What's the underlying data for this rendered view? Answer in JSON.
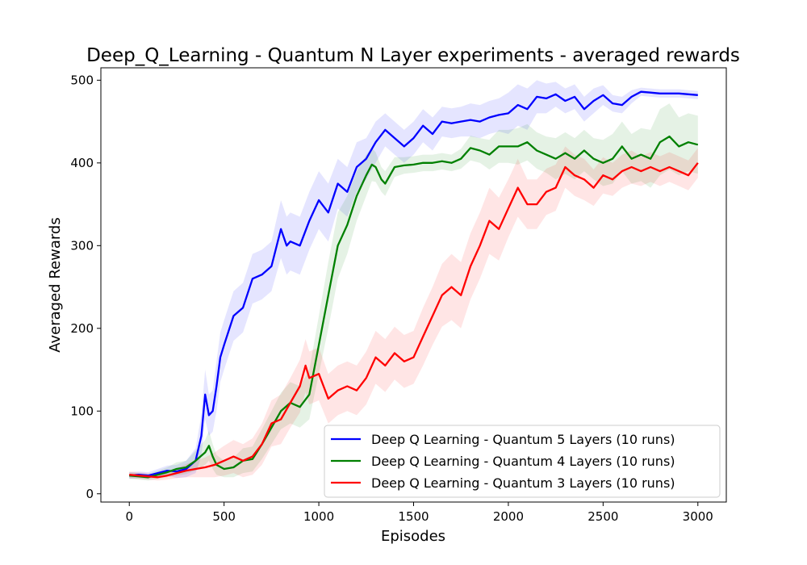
{
  "chart_data": {
    "type": "line",
    "title": "Deep_Q_Learning - Quantum N Layer experiments - averaged rewards",
    "xlabel": "Episodes",
    "ylabel": "Averaged Rewards",
    "xlim": [
      -150,
      3150
    ],
    "ylim": [
      -10,
      515
    ],
    "xticks": [
      0,
      500,
      1000,
      1500,
      2000,
      2500,
      3000
    ],
    "yticks": [
      0,
      100,
      200,
      300,
      400,
      500
    ],
    "grid": false,
    "legend_position": "bottom-right",
    "series": [
      {
        "name": "Deep Q Learning - Quantum 5 Layers (10 runs)",
        "color": "#0000ff",
        "x": [
          0,
          50,
          100,
          150,
          200,
          250,
          300,
          350,
          380,
          400,
          420,
          440,
          460,
          480,
          500,
          550,
          600,
          650,
          700,
          750,
          800,
          830,
          850,
          900,
          950,
          1000,
          1050,
          1100,
          1150,
          1200,
          1250,
          1300,
          1350,
          1400,
          1450,
          1500,
          1550,
          1600,
          1650,
          1700,
          1750,
          1800,
          1850,
          1900,
          1950,
          2000,
          2050,
          2100,
          2150,
          2200,
          2250,
          2300,
          2350,
          2400,
          2450,
          2500,
          2550,
          2600,
          2650,
          2700,
          2750,
          2800,
          2850,
          2900,
          2950,
          3000
        ],
        "values": [
          22,
          23,
          22,
          25,
          28,
          27,
          30,
          40,
          70,
          120,
          95,
          100,
          130,
          165,
          180,
          215,
          225,
          260,
          265,
          275,
          320,
          300,
          305,
          300,
          330,
          355,
          340,
          375,
          365,
          395,
          405,
          425,
          440,
          430,
          420,
          430,
          445,
          435,
          450,
          448,
          450,
          452,
          450,
          455,
          458,
          460,
          470,
          465,
          480,
          478,
          483,
          475,
          480,
          465,
          475,
          482,
          472,
          470,
          480,
          486,
          485,
          484,
          484,
          484,
          483,
          482
        ],
        "band": [
          4,
          4,
          4,
          5,
          6,
          8,
          10,
          15,
          25,
          30,
          25,
          25,
          30,
          30,
          30,
          30,
          30,
          30,
          30,
          30,
          35,
          35,
          35,
          35,
          35,
          35,
          35,
          30,
          30,
          30,
          25,
          25,
          20,
          20,
          20,
          20,
          20,
          20,
          18,
          18,
          18,
          20,
          20,
          20,
          20,
          25,
          25,
          25,
          20,
          18,
          15,
          15,
          15,
          15,
          15,
          12,
          10,
          10,
          8,
          5,
          5,
          5,
          5,
          5,
          5,
          5
        ]
      },
      {
        "name": "Deep Q Learning - Quantum 4 Layers (10 runs)",
        "color": "#008000",
        "x": [
          0,
          50,
          100,
          150,
          200,
          250,
          300,
          350,
          400,
          420,
          440,
          460,
          500,
          550,
          600,
          650,
          700,
          750,
          800,
          850,
          900,
          950,
          1000,
          1050,
          1100,
          1150,
          1200,
          1250,
          1280,
          1300,
          1330,
          1350,
          1400,
          1450,
          1500,
          1550,
          1600,
          1650,
          1700,
          1750,
          1800,
          1850,
          1900,
          1950,
          2000,
          2050,
          2100,
          2150,
          2200,
          2250,
          2300,
          2350,
          2400,
          2450,
          2500,
          2550,
          2600,
          2650,
          2700,
          2750,
          2800,
          2850,
          2900,
          2950,
          3000
        ],
        "values": [
          22,
          21,
          20,
          23,
          26,
          30,
          32,
          40,
          50,
          58,
          45,
          35,
          30,
          32,
          40,
          42,
          60,
          80,
          100,
          110,
          105,
          120,
          180,
          240,
          300,
          325,
          360,
          385,
          398,
          395,
          380,
          375,
          395,
          397,
          398,
          400,
          400,
          402,
          400,
          405,
          418,
          415,
          410,
          420,
          420,
          420,
          425,
          415,
          410,
          405,
          412,
          405,
          415,
          405,
          400,
          405,
          420,
          405,
          410,
          405,
          425,
          432,
          420,
          425,
          422
        ],
        "band": [
          4,
          4,
          4,
          5,
          6,
          8,
          8,
          12,
          15,
          18,
          15,
          12,
          10,
          12,
          15,
          15,
          18,
          20,
          22,
          25,
          25,
          30,
          35,
          40,
          40,
          35,
          30,
          25,
          20,
          18,
          15,
          15,
          12,
          10,
          10,
          10,
          10,
          10,
          10,
          12,
          15,
          15,
          18,
          20,
          20,
          22,
          22,
          22,
          22,
          25,
          25,
          25,
          25,
          25,
          28,
          30,
          30,
          30,
          32,
          35,
          40,
          40,
          35,
          35,
          35
        ]
      },
      {
        "name": "Deep Q Learning - Quantum 3 Layers (10 runs)",
        "color": "#ff0000",
        "x": [
          0,
          50,
          100,
          150,
          200,
          250,
          300,
          350,
          400,
          450,
          500,
          550,
          600,
          650,
          700,
          750,
          800,
          850,
          900,
          930,
          950,
          1000,
          1050,
          1100,
          1150,
          1200,
          1250,
          1300,
          1350,
          1400,
          1450,
          1500,
          1550,
          1600,
          1650,
          1700,
          1750,
          1800,
          1850,
          1900,
          1950,
          2000,
          2050,
          2100,
          2150,
          2200,
          2250,
          2300,
          2350,
          2400,
          2450,
          2500,
          2550,
          2600,
          2650,
          2700,
          2750,
          2800,
          2850,
          2900,
          2950,
          3000
        ],
        "values": [
          23,
          22,
          21,
          20,
          22,
          25,
          28,
          30,
          32,
          35,
          40,
          45,
          40,
          45,
          60,
          85,
          90,
          110,
          130,
          155,
          140,
          145,
          115,
          125,
          130,
          125,
          140,
          165,
          155,
          170,
          160,
          165,
          190,
          215,
          240,
          250,
          240,
          275,
          300,
          330,
          320,
          345,
          370,
          350,
          350,
          365,
          370,
          395,
          385,
          380,
          370,
          385,
          380,
          390,
          395,
          390,
          395,
          390,
          395,
          390,
          385,
          400
        ],
        "band": [
          4,
          4,
          4,
          4,
          5,
          6,
          8,
          10,
          12,
          15,
          18,
          20,
          20,
          22,
          25,
          28,
          30,
          30,
          32,
          32,
          32,
          32,
          30,
          30,
          30,
          30,
          32,
          32,
          32,
          32,
          32,
          32,
          35,
          35,
          38,
          40,
          40,
          40,
          40,
          40,
          38,
          35,
          35,
          30,
          30,
          28,
          28,
          25,
          25,
          25,
          22,
          22,
          20,
          20,
          20,
          18,
          18,
          18,
          18,
          18,
          18,
          18
        ]
      }
    ]
  }
}
